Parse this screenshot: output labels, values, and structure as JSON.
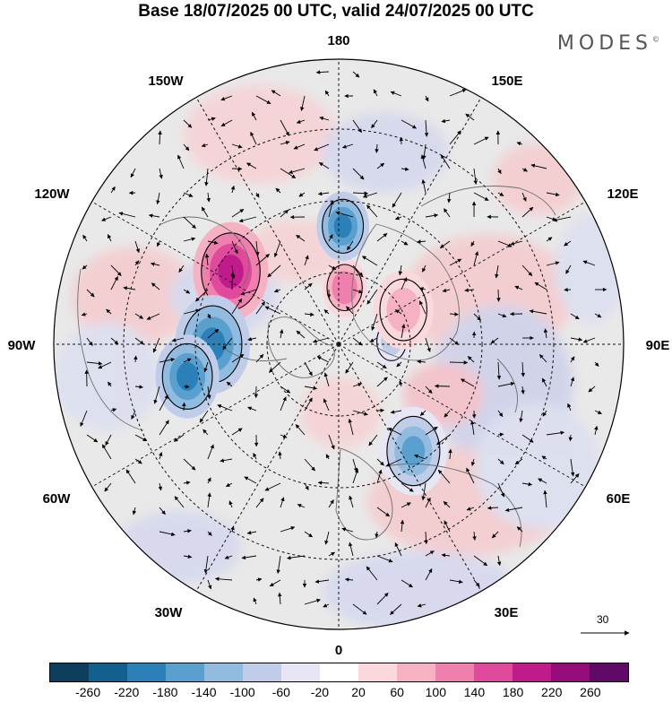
{
  "title": "Base 18/07/2025 00 UTC, valid 24/07/2025 00 UTC",
  "brand": "MODES",
  "brand_mark": "©",
  "longitude_labels": {
    "top": "180",
    "bottom": "0",
    "left": "90W",
    "right": "90E",
    "upper_left_1": "150W",
    "upper_left_2": "120W",
    "lower_left_1": "60W",
    "lower_left_2": "30W",
    "upper_right_1": "150E",
    "upper_right_2": "120E",
    "lower_right_1": "60E",
    "lower_right_2": "30E"
  },
  "vector_scale_label": "30",
  "colorbar": {
    "colors": [
      "#0d3e5c",
      "#135f8e",
      "#2a80b7",
      "#5aa0cf",
      "#92bbe0",
      "#c0cde8",
      "#e6e6f4",
      "#ffffff",
      "#fbd8dc",
      "#f6b2c2",
      "#ef80ad",
      "#df4a9c",
      "#c01b8b",
      "#930c7a",
      "#5e0a66"
    ],
    "tick_labels": [
      "-260",
      "-220",
      "-180",
      "-140",
      "-100",
      "-60",
      "-20",
      "20",
      "60",
      "100",
      "140",
      "180",
      "220",
      "260"
    ]
  },
  "anomaly_blobs": [
    {
      "polar_lon": 236,
      "polar_lat": 58,
      "size": 1.0,
      "value": 190
    },
    {
      "polar_lon": 270,
      "polar_lat": 59,
      "size": 1.0,
      "value": -210
    },
    {
      "polar_lon": 282,
      "polar_lat": 52,
      "size": 0.85,
      "value": -200
    },
    {
      "polar_lon": 174,
      "polar_lat": 76,
      "size": 0.6,
      "value": 130
    },
    {
      "polar_lon": 178,
      "polar_lat": 61,
      "size": 0.7,
      "value": -180
    },
    {
      "polar_lon": 35,
      "polar_lat": 58,
      "size": 0.9,
      "value": -140
    },
    {
      "polar_lon": 93,
      "polar_lat": 77,
      "size": 0.5,
      "value": -90
    },
    {
      "polar_lon": 118,
      "polar_lat": 72,
      "size": 0.8,
      "value": 80
    }
  ]
}
